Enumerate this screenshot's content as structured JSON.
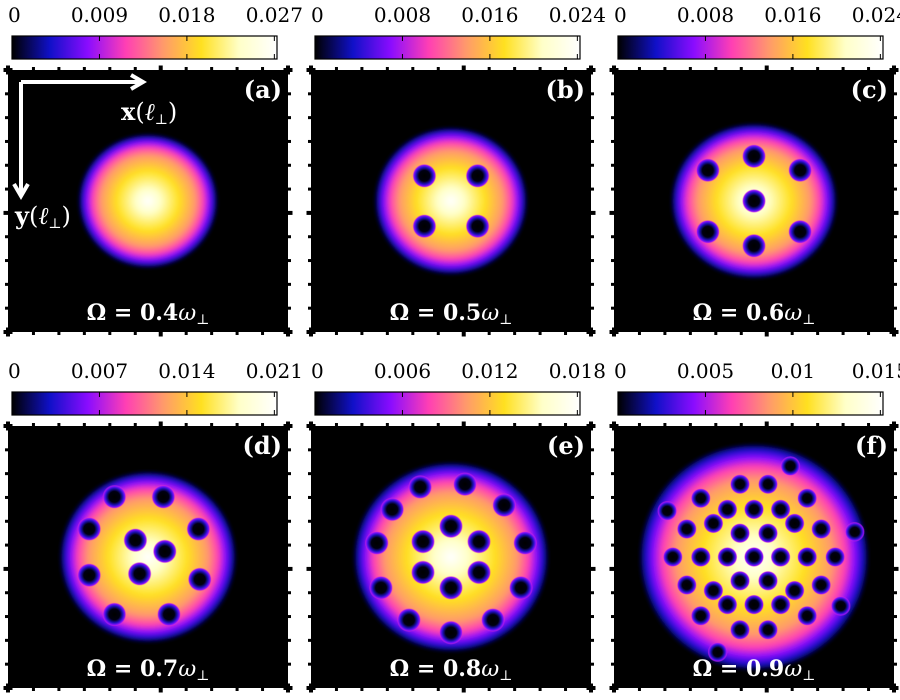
{
  "gradient_stops": [
    "#000000",
    "#1010c8",
    "#8a0cff",
    "#ff3fb4",
    "#ff9a6a",
    "#ffe020",
    "#ffffc8",
    "#ffffff"
  ],
  "axes": {
    "x_label": "x",
    "y_label": "y",
    "unit": "ℓ⊥",
    "open_paren": "(",
    "close_paren": ")"
  },
  "panels": [
    {
      "letter": "a",
      "omega": "0.4",
      "cbar_ticks": [
        "0",
        "0.009",
        "0.018",
        "0.027"
      ],
      "show_axes": true,
      "cloud": {
        "rx": 0.52,
        "ry": 0.5
      },
      "vortices": []
    },
    {
      "letter": "b",
      "omega": "0.5",
      "cbar_ticks": [
        "0",
        "0.008",
        "0.016",
        "0.024"
      ],
      "show_axes": false,
      "cloud": {
        "rx": 0.57,
        "ry": 0.55
      },
      "vortices": [
        [
          -0.19,
          -0.18
        ],
        [
          0.19,
          -0.18
        ],
        [
          -0.19,
          0.18
        ],
        [
          0.19,
          0.18
        ]
      ]
    },
    {
      "letter": "c",
      "omega": "0.6",
      "cbar_ticks": [
        "0",
        "0.008",
        "0.016",
        "0.024"
      ],
      "show_axes": false,
      "cloud": {
        "rx": 0.62,
        "ry": 0.58
      },
      "vortices": [
        [
          0,
          0
        ],
        [
          -0.33,
          -0.22
        ],
        [
          0,
          -0.32
        ],
        [
          0.33,
          -0.22
        ],
        [
          -0.33,
          0.22
        ],
        [
          0,
          0.32
        ],
        [
          0.33,
          0.22
        ]
      ]
    },
    {
      "letter": "d",
      "omega": "0.7",
      "cbar_ticks": [
        "0",
        "0.007",
        "0.014",
        "0.021"
      ],
      "show_axes": false,
      "cloud": {
        "rx": 0.66,
        "ry": 0.64
      },
      "vortices": [
        [
          -0.09,
          -0.12
        ],
        [
          0.12,
          -0.04
        ],
        [
          -0.06,
          0.12
        ],
        [
          -0.24,
          -0.43
        ],
        [
          0.11,
          -0.43
        ],
        [
          0.36,
          -0.2
        ],
        [
          0.37,
          0.16
        ],
        [
          0.15,
          0.41
        ],
        [
          -0.24,
          0.41
        ],
        [
          -0.42,
          0.13
        ],
        [
          -0.42,
          -0.2
        ]
      ]
    },
    {
      "letter": "e",
      "omega": "0.8",
      "cbar_ticks": [
        "0",
        "0.006",
        "0.012",
        "0.018"
      ],
      "show_axes": false,
      "cloud": {
        "rx": 0.73,
        "ry": 0.71
      },
      "vortices": [
        [
          0,
          -0.22
        ],
        [
          0.2,
          -0.11
        ],
        [
          0.2,
          0.11
        ],
        [
          0,
          0.22
        ],
        [
          -0.2,
          0.11
        ],
        [
          -0.2,
          -0.11
        ],
        [
          -0.22,
          -0.5
        ],
        [
          0.1,
          -0.52
        ],
        [
          0.38,
          -0.37
        ],
        [
          0.53,
          -0.1
        ],
        [
          0.5,
          0.22
        ],
        [
          0.3,
          0.45
        ],
        [
          0,
          0.54
        ],
        [
          -0.3,
          0.45
        ],
        [
          -0.5,
          0.22
        ],
        [
          -0.53,
          -0.1
        ],
        [
          -0.42,
          -0.34
        ]
      ]
    },
    {
      "letter": "f",
      "omega": "0.9",
      "cbar_ticks": [
        "0",
        "0.005",
        "0.01",
        "0.015"
      ],
      "show_axes": false,
      "cloud": {
        "rx": 0.86,
        "ry": 0.85
      },
      "vortices": [
        [
          0,
          0
        ],
        [
          0.19,
          0
        ],
        [
          -0.19,
          0
        ],
        [
          0.1,
          -0.17
        ],
        [
          -0.1,
          -0.17
        ],
        [
          0.1,
          0.17
        ],
        [
          -0.1,
          0.17
        ],
        [
          0.38,
          0
        ],
        [
          -0.38,
          0
        ],
        [
          0.29,
          -0.24
        ],
        [
          -0.29,
          -0.24
        ],
        [
          0.29,
          0.24
        ],
        [
          -0.29,
          0.24
        ],
        [
          0,
          -0.34
        ],
        [
          0,
          0.34
        ],
        [
          0.19,
          -0.34
        ],
        [
          -0.19,
          -0.34
        ],
        [
          0.19,
          0.34
        ],
        [
          -0.19,
          0.34
        ],
        [
          0.48,
          -0.2
        ],
        [
          0.48,
          0.2
        ],
        [
          -0.48,
          -0.2
        ],
        [
          -0.48,
          0.2
        ],
        [
          0.1,
          -0.52
        ],
        [
          -0.1,
          -0.52
        ],
        [
          0.1,
          0.52
        ],
        [
          -0.1,
          0.52
        ],
        [
          0.38,
          -0.42
        ],
        [
          -0.38,
          -0.42
        ],
        [
          0.38,
          0.42
        ],
        [
          -0.38,
          0.42
        ],
        [
          0.58,
          0
        ],
        [
          -0.58,
          0
        ],
        [
          0.26,
          -0.65
        ],
        [
          -0.26,
          0.68
        ],
        [
          0.62,
          0.35
        ],
        [
          -0.62,
          -0.33
        ],
        [
          0.72,
          -0.18
        ]
      ]
    }
  ]
}
